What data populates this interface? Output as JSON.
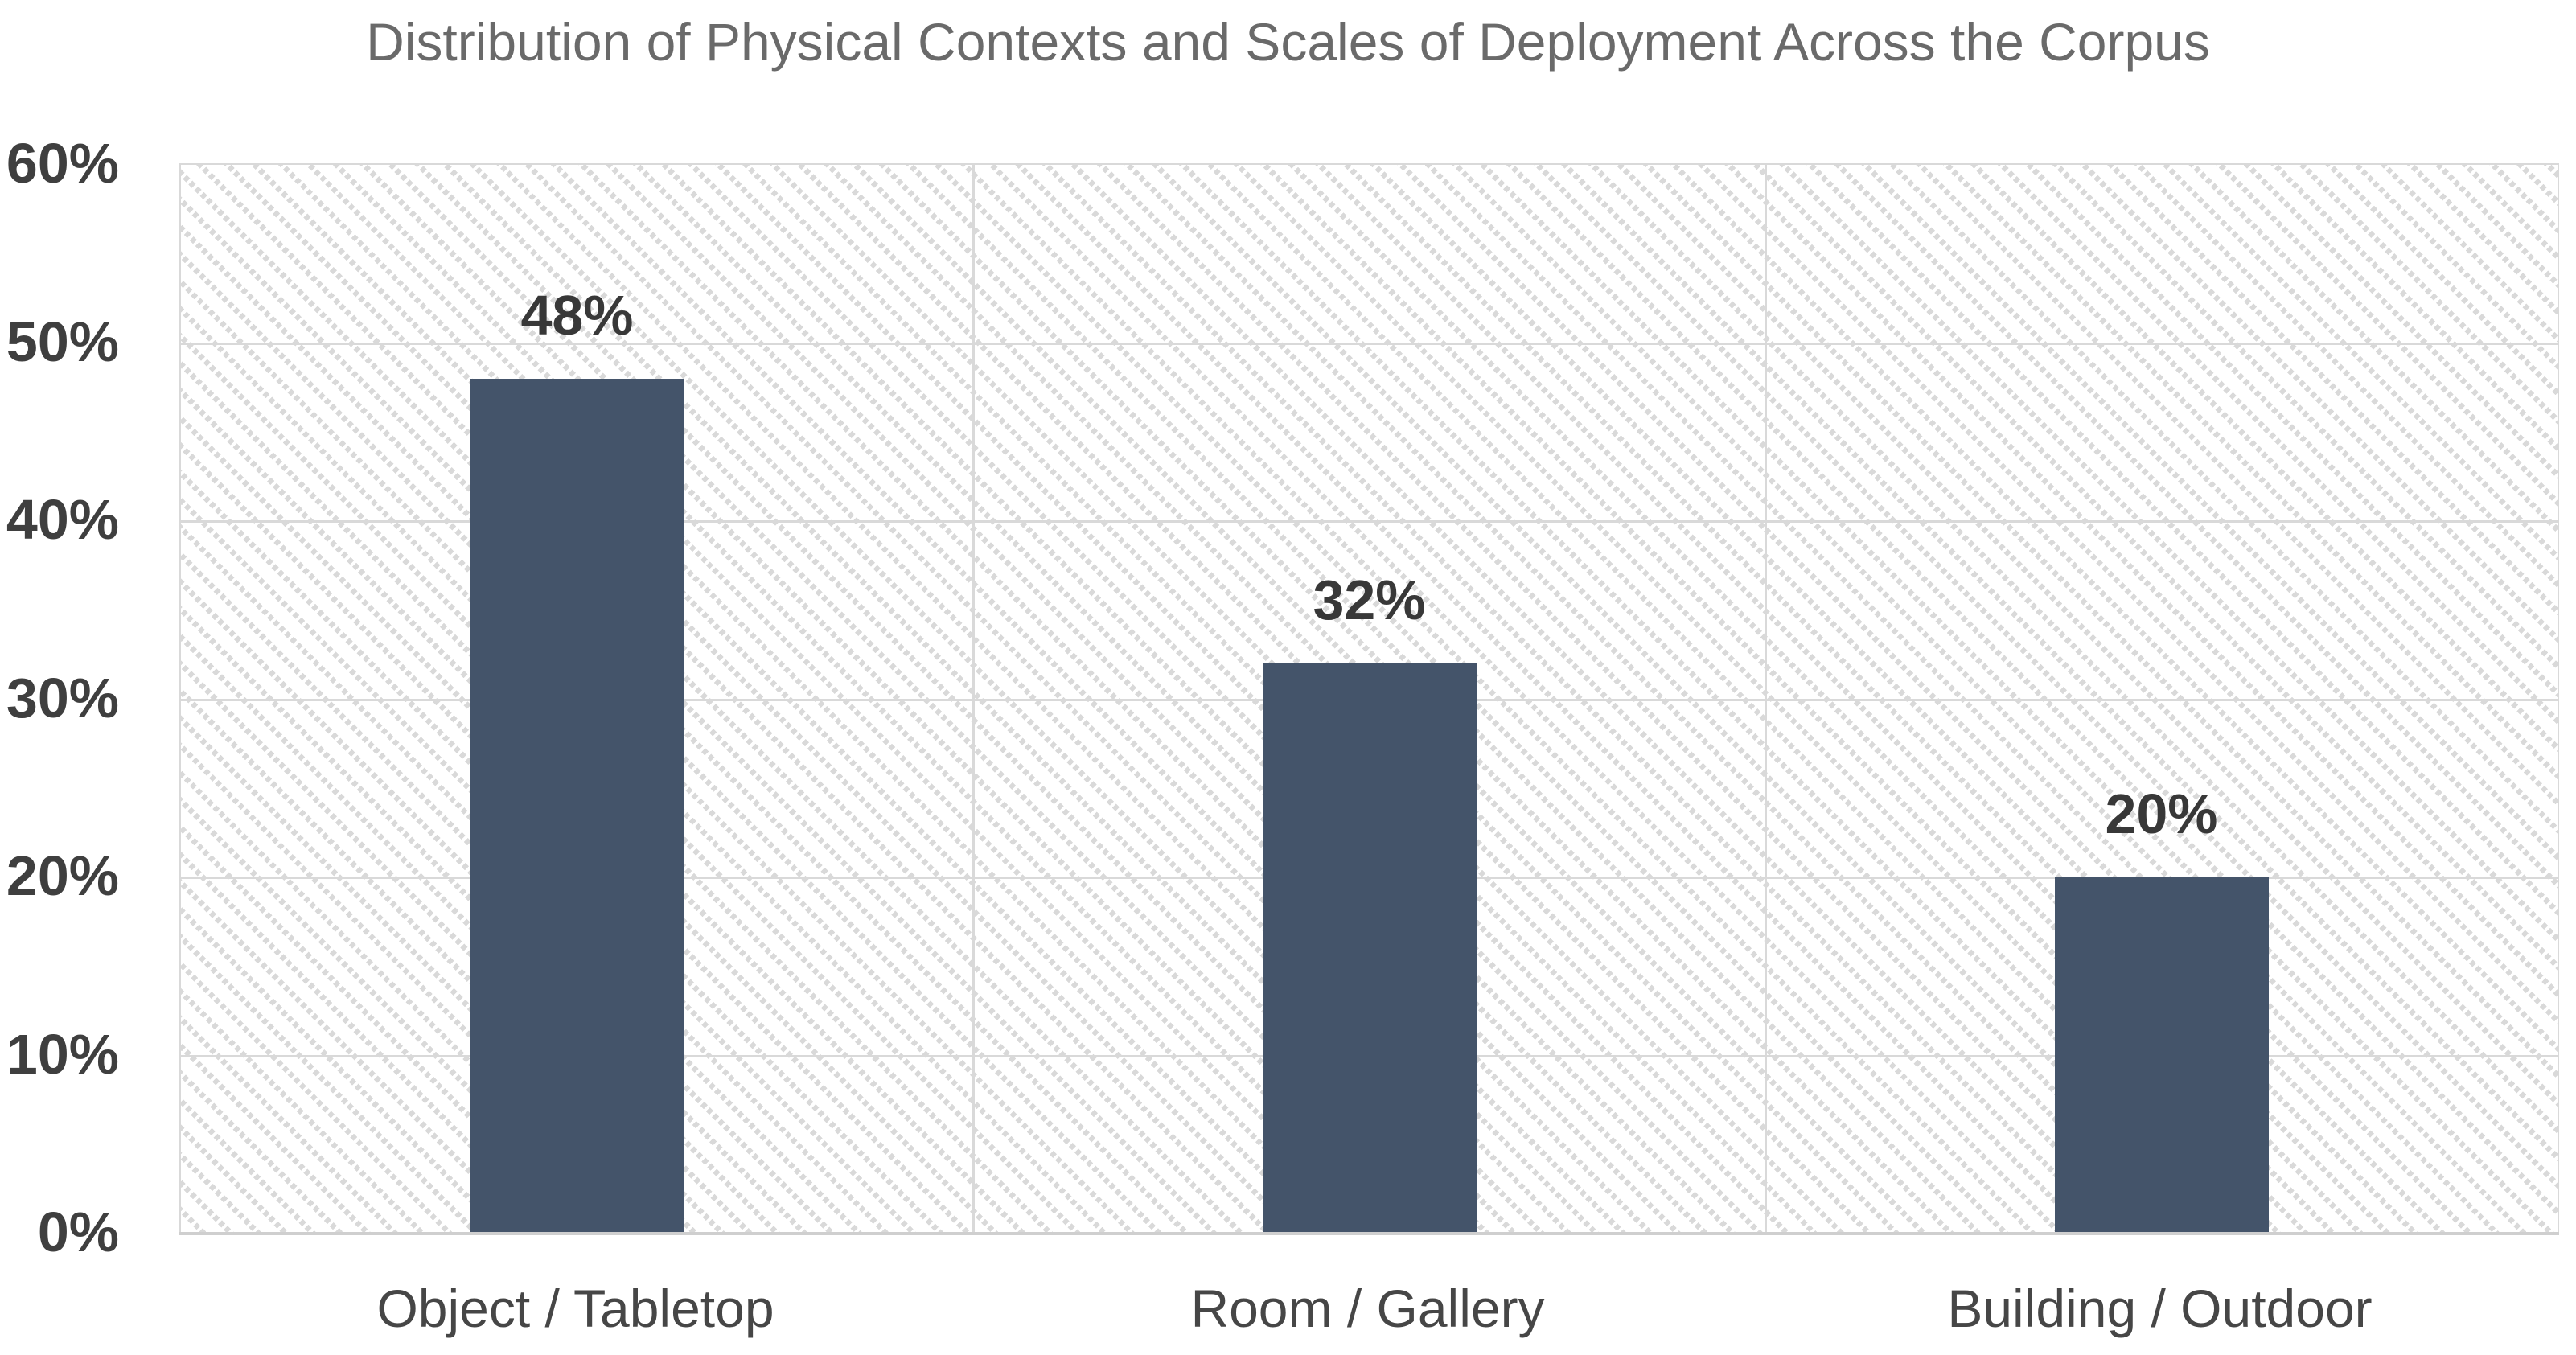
{
  "chart": {
    "title": "Distribution of Physical Contexts and Scales of Deployment Across the Corpus"
  },
  "chart_data": {
    "type": "bar",
    "title": "Distribution of Physical Contexts and Scales of Deployment Across the Corpus",
    "categories": [
      "Object / Tabletop",
      "Room / Gallery",
      "Building / Outdoor"
    ],
    "values": [
      48,
      32,
      20
    ],
    "data_labels": [
      "48%",
      "32%",
      "20%"
    ],
    "xlabel": "",
    "ylabel": "",
    "ylim": [
      0,
      60
    ],
    "ytick_values": [
      0,
      10,
      20,
      30,
      40,
      50,
      60
    ],
    "ytick_labels": [
      "0%",
      "10%",
      "20%",
      "30%",
      "40%",
      "50%",
      "60%"
    ],
    "legend": "none",
    "grid": "horizontal-major-and-vertical-category-boundaries",
    "plot_background": "light diagonal dotted hatch pattern",
    "colors": {
      "bar_fill": "#44546A",
      "gridline": "#D9D9D9",
      "axis_line": "#CFCFCF",
      "hatch_dot": "#D9D9D9",
      "title_text": "#6A6A6A",
      "ytick_text": "#3F3F3F",
      "category_text": "#464646",
      "data_label_text": "#383838",
      "background": "#FFFFFF"
    }
  }
}
